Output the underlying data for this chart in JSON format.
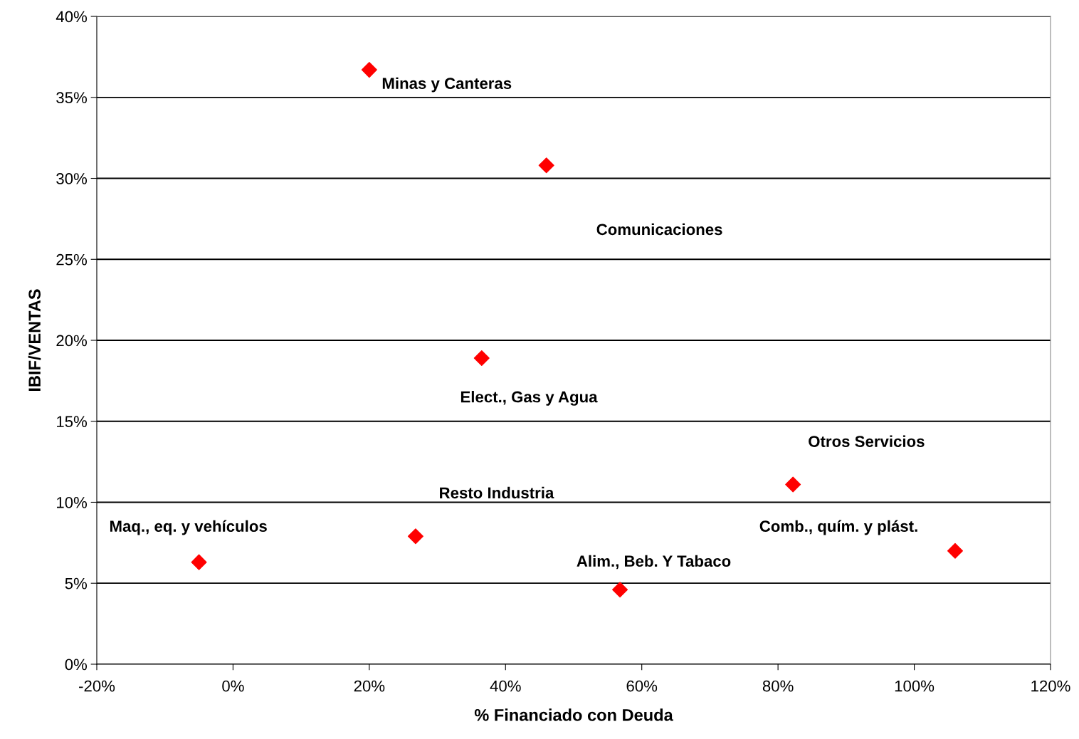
{
  "chart_data": {
    "type": "scatter",
    "xlabel": "% Financiado con Deuda",
    "ylabel": "IBIF/VENTAS",
    "x": [
      20.0,
      46.0,
      36.5,
      82.2,
      26.8,
      -5.0,
      56.8,
      106.0
    ],
    "series": [
      {
        "color": "#ff0000",
        "values": [
          36.7,
          30.8,
          18.9,
          11.1,
          7.9,
          6.3,
          4.6,
          7.0
        ]
      }
    ],
    "annotations": [
      "Minas y Canteras",
      "Comunicaciones",
      "Elect., Gas y Agua",
      "Otros Servicios",
      "Resto Industria",
      "Maq., eq. y vehículos",
      "Comb., quím. y plást.",
      "Alim., Beb. Y Tabaco"
    ],
    "xlim": [
      -20,
      120
    ],
    "xticks": [
      {
        "value": -20,
        "label": "-20%"
      },
      {
        "value": 0,
        "label": "0%"
      },
      {
        "value": 20,
        "label": "20%"
      },
      {
        "value": 40,
        "label": "40%"
      },
      {
        "value": 60,
        "label": "60%"
      },
      {
        "value": 80,
        "label": "80%"
      },
      {
        "value": 100,
        "label": "100%"
      },
      {
        "value": 120,
        "label": "120%"
      }
    ],
    "ylim": [
      0,
      40
    ],
    "yticks": [
      {
        "value": 0,
        "label": "0%"
      },
      {
        "value": 5,
        "label": "5%"
      },
      {
        "value": 10,
        "label": "10%"
      },
      {
        "value": 15,
        "label": "15%"
      },
      {
        "value": 20,
        "label": "20%"
      },
      {
        "value": 25,
        "label": "25%"
      },
      {
        "value": 30,
        "label": "30%"
      },
      {
        "value": 35,
        "label": "35%"
      },
      {
        "value": 40,
        "label": "40%"
      }
    ],
    "grid": "y",
    "marker": "diamond"
  }
}
